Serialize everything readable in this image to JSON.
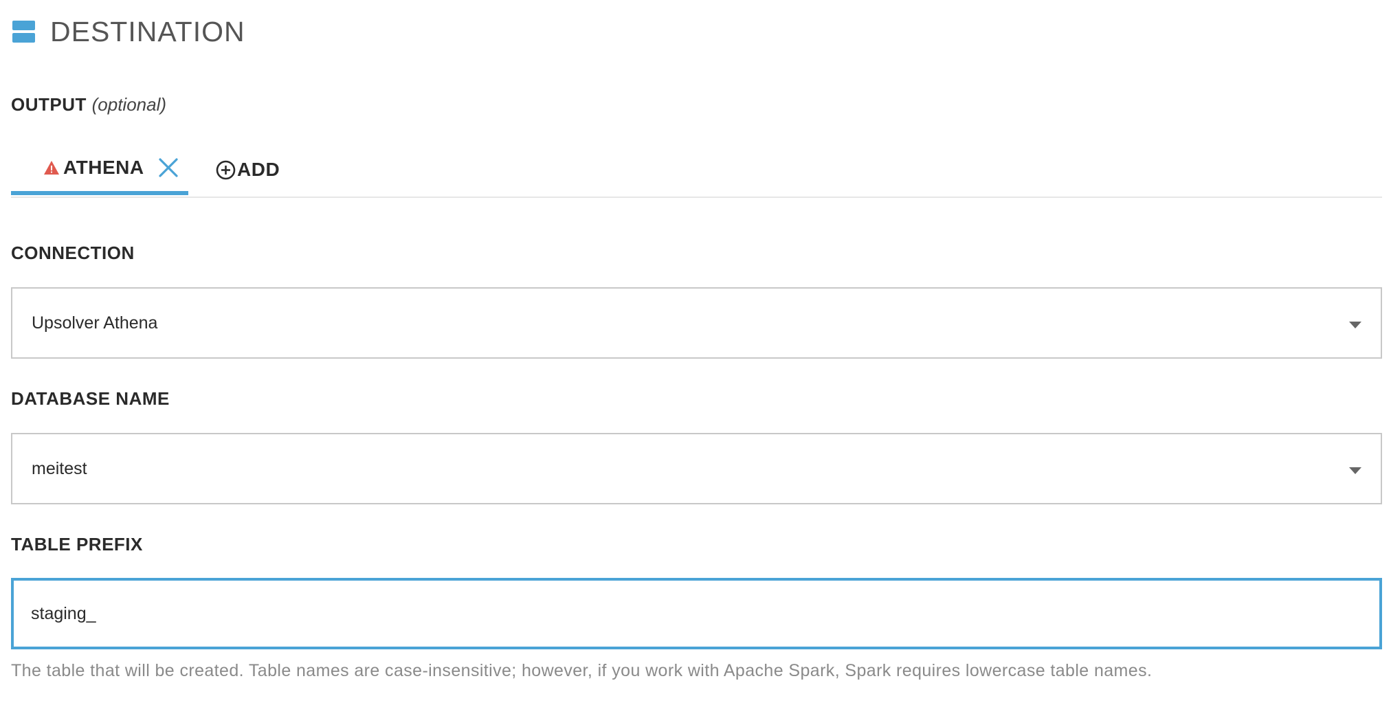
{
  "header": {
    "title": "DESTINATION",
    "icon": "layers-icon",
    "accent_color": "#4aa3d6"
  },
  "output": {
    "label": "OUTPUT",
    "optional_note": "(optional)",
    "tabs": [
      {
        "label": "ATHENA",
        "status_icon": "warning-icon",
        "status_color": "#e05a4f",
        "close_icon": "close-icon",
        "active": true
      }
    ],
    "add_label": "ADD",
    "add_icon": "plus-circle-icon"
  },
  "connection": {
    "label": "CONNECTION",
    "value": "Upsolver Athena"
  },
  "database": {
    "label": "DATABASE NAME",
    "value": "meitest"
  },
  "table_prefix": {
    "label": "TABLE PREFIX",
    "value": "staging_",
    "help": "The table that will be created. Table names are case-insensitive; however, if you work with Apache Spark, Spark requires lowercase table names."
  }
}
